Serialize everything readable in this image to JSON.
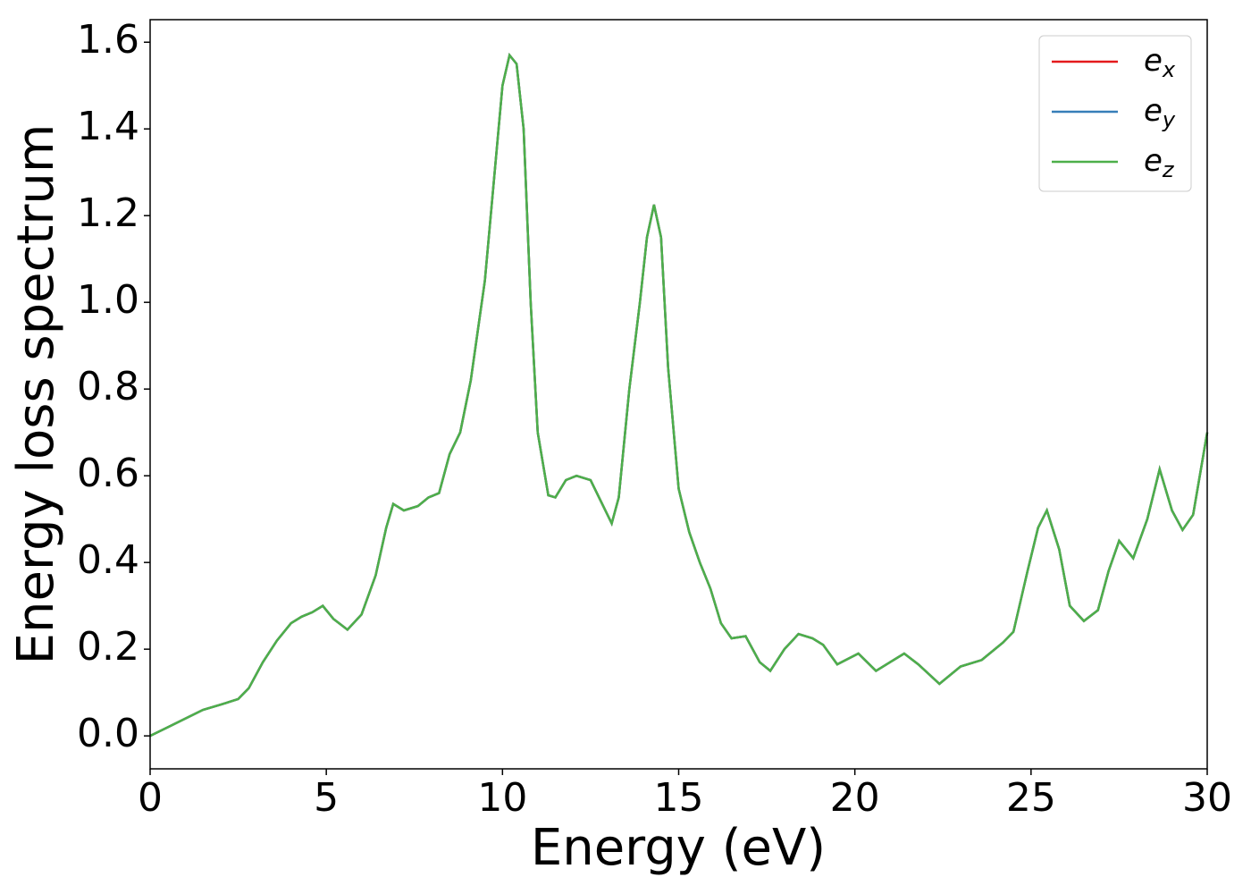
{
  "chart_data": {
    "type": "line",
    "xlabel": "Energy (eV)",
    "ylabel": "Energy loss spectrum",
    "xlim": [
      0,
      30
    ],
    "ylim": [
      -0.076,
      1.652
    ],
    "xticks": [
      0,
      5,
      10,
      15,
      20,
      25,
      30
    ],
    "yticks": [
      {
        "value": 0,
        "label": "0.0"
      },
      0.2,
      0.4,
      0.6,
      0.8,
      {
        "value": 1,
        "label": "1.0"
      },
      1.2,
      1.4,
      1.6
    ],
    "legend": "upper right",
    "x": [
      0,
      0.5,
      1,
      1.5,
      2,
      2.5,
      2.8,
      3.2,
      3.6,
      4,
      4.3,
      4.6,
      4.9,
      5.2,
      5.6,
      6,
      6.4,
      6.7,
      6.9,
      7.2,
      7.6,
      7.9,
      8.2,
      8.5,
      8.8,
      9.1,
      9.5,
      9.8,
      10,
      10.2,
      10.4,
      10.6,
      10.8,
      11,
      11.3,
      11.5,
      11.8,
      12.1,
      12.5,
      12.8,
      13.1,
      13.3,
      13.6,
      13.9,
      14.1,
      14.3,
      14.5,
      14.7,
      15,
      15.3,
      15.6,
      15.9,
      16.2,
      16.5,
      16.9,
      17.3,
      17.6,
      18,
      18.4,
      18.8,
      19.1,
      19.5,
      20.1,
      20.6,
      21,
      21.4,
      21.8,
      22.4,
      23,
      23.6,
      24.2,
      24.5,
      24.9,
      25.2,
      25.45,
      25.8,
      26.1,
      26.5,
      26.9,
      27.2,
      27.5,
      27.9,
      28.3,
      28.65,
      29,
      29.3,
      29.6,
      30
    ],
    "series": [
      {
        "name": "ex",
        "color": "#e41a1c",
        "values": [
          0,
          0.02,
          0.04,
          0.06,
          0.072,
          0.085,
          0.11,
          0.17,
          0.22,
          0.26,
          0.275,
          0.285,
          0.3,
          0.27,
          0.245,
          0.28,
          0.37,
          0.48,
          0.535,
          0.52,
          0.53,
          0.55,
          0.56,
          0.65,
          0.7,
          0.82,
          1.05,
          1.32,
          1.5,
          1.57,
          1.55,
          1.4,
          1,
          0.7,
          0.555,
          0.55,
          0.59,
          0.6,
          0.59,
          0.54,
          0.49,
          0.55,
          0.8,
          1,
          1.15,
          1.225,
          1.15,
          0.85,
          0.57,
          0.47,
          0.4,
          0.34,
          0.26,
          0.225,
          0.23,
          0.17,
          0.15,
          0.2,
          0.235,
          0.225,
          0.21,
          0.165,
          0.19,
          0.15,
          0.17,
          0.19,
          0.165,
          0.12,
          0.16,
          0.175,
          0.215,
          0.24,
          0.38,
          0.48,
          0.52,
          0.43,
          0.3,
          0.265,
          0.29,
          0.38,
          0.45,
          0.41,
          0.5,
          0.615,
          0.52,
          0.475,
          0.51,
          0.7
        ]
      },
      {
        "name": "ey",
        "color": "#377eb8",
        "values": [
          0,
          0.02,
          0.04,
          0.06,
          0.072,
          0.085,
          0.11,
          0.17,
          0.22,
          0.26,
          0.275,
          0.285,
          0.3,
          0.27,
          0.245,
          0.28,
          0.37,
          0.48,
          0.535,
          0.52,
          0.53,
          0.55,
          0.56,
          0.65,
          0.7,
          0.82,
          1.05,
          1.32,
          1.5,
          1.57,
          1.55,
          1.4,
          1,
          0.7,
          0.555,
          0.55,
          0.59,
          0.6,
          0.59,
          0.54,
          0.49,
          0.55,
          0.8,
          1,
          1.15,
          1.225,
          1.15,
          0.85,
          0.57,
          0.47,
          0.4,
          0.34,
          0.26,
          0.225,
          0.23,
          0.17,
          0.15,
          0.2,
          0.235,
          0.225,
          0.21,
          0.165,
          0.19,
          0.15,
          0.17,
          0.19,
          0.165,
          0.12,
          0.16,
          0.175,
          0.215,
          0.24,
          0.38,
          0.48,
          0.52,
          0.43,
          0.3,
          0.265,
          0.29,
          0.38,
          0.45,
          0.41,
          0.5,
          0.615,
          0.52,
          0.475,
          0.51,
          0.7
        ]
      },
      {
        "name": "ez",
        "color": "#4daf4a",
        "values": [
          0,
          0.02,
          0.04,
          0.06,
          0.072,
          0.085,
          0.11,
          0.17,
          0.22,
          0.26,
          0.275,
          0.285,
          0.3,
          0.27,
          0.245,
          0.28,
          0.37,
          0.48,
          0.535,
          0.52,
          0.53,
          0.55,
          0.56,
          0.65,
          0.7,
          0.82,
          1.05,
          1.32,
          1.5,
          1.57,
          1.55,
          1.4,
          1,
          0.7,
          0.555,
          0.55,
          0.59,
          0.6,
          0.59,
          0.54,
          0.49,
          0.55,
          0.8,
          1,
          1.15,
          1.225,
          1.15,
          0.85,
          0.57,
          0.47,
          0.4,
          0.34,
          0.26,
          0.225,
          0.23,
          0.17,
          0.15,
          0.2,
          0.235,
          0.225,
          0.21,
          0.165,
          0.19,
          0.15,
          0.17,
          0.19,
          0.165,
          0.12,
          0.16,
          0.175,
          0.215,
          0.24,
          0.38,
          0.48,
          0.52,
          0.43,
          0.3,
          0.265,
          0.29,
          0.38,
          0.45,
          0.41,
          0.5,
          0.615,
          0.52,
          0.475,
          0.51,
          0.7
        ]
      }
    ]
  }
}
